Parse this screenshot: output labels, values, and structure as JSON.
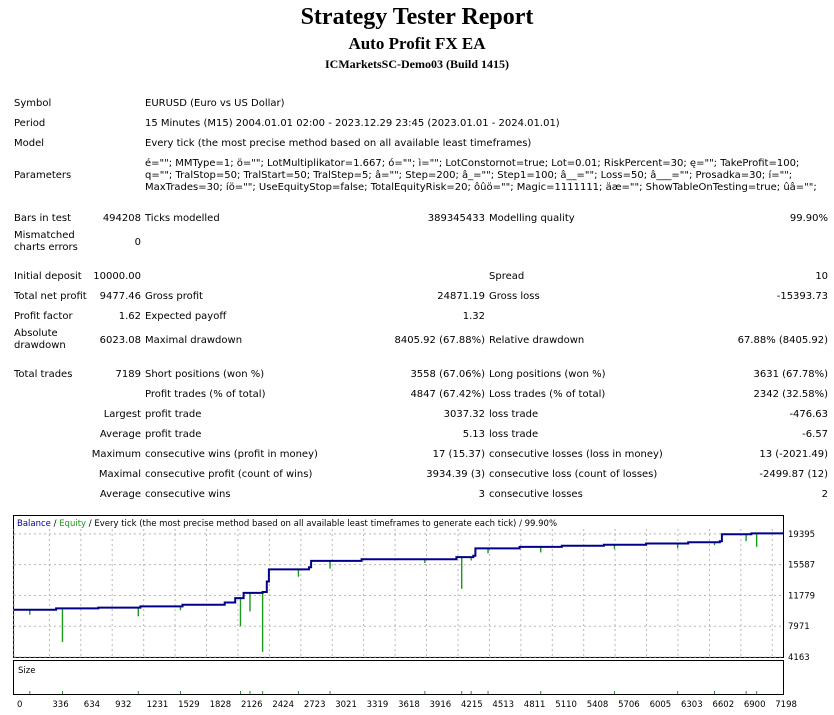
{
  "header": {
    "title": "Strategy Tester Report",
    "ea_name": "Auto Profit FX EA",
    "server": "ICMarketsSC-Demo03 (Build 1415)"
  },
  "general": {
    "symbol_label": "Symbol",
    "symbol_value": "EURUSD (Euro vs US Dollar)",
    "period_label": "Period",
    "period_value": "15 Minutes (M15) 2004.01.01 02:00 - 2023.12.29 23:45 (2023.01.01 - 2024.01.01)",
    "model_label": "Model",
    "model_value": "Every tick (the most precise method based on all available least timeframes)",
    "parameters_label": "Parameters",
    "parameters_value": "é=\"\"; MMType=1; ö=\"\"; LotMultiplikator=1.667; ó=\"\"; ì=\"\"; LotConstornot=true; Lot=0.01; RiskPercent=30; ę=\"\"; TakeProfit=100; q=\"\"; TralStop=50; TralStart=50; TralStep=5; â=\"\"; Step=200; â_=\"\"; Step1=100; â__=\"\"; Loss=50; â___=\"\"; Prosadka=30; í=\"\"; MaxTrades=30; íö=\"\"; UseEquityStop=false; TotalEquityRisk=20; ôûö=\"\"; Magic=1111111; äæ=\"\"; ShowTableOnTesting=true; ûâ=\"\";"
  },
  "stats": {
    "bars_label": "Bars in test",
    "bars_value": "494208",
    "ticks_label": "Ticks modelled",
    "ticks_value": "389345433",
    "mq_label": "Modelling quality",
    "mq_value": "99.90%",
    "mismatch_label": "Mismatched charts errors",
    "mismatch_value": "0",
    "deposit_label": "Initial deposit",
    "deposit_value": "10000.00",
    "spread_label": "Spread",
    "spread_value": "10",
    "netprofit_label": "Total net profit",
    "netprofit_value": "9477.46",
    "grossprofit_label": "Gross profit",
    "grossprofit_value": "24871.19",
    "grossloss_label": "Gross loss",
    "grossloss_value": "-15393.73",
    "pf_label": "Profit factor",
    "pf_value": "1.62",
    "ep_label": "Expected payoff",
    "ep_value": "1.32",
    "absdd_label": "Absolute drawdown",
    "absdd_value": "6023.08",
    "maxdd_label": "Maximal drawdown",
    "maxdd_value": "8405.92 (67.88%)",
    "reldd_label": "Relative drawdown",
    "reldd_value": "67.88% (8405.92)",
    "tt_label": "Total trades",
    "tt_value": "7189",
    "short_label": "Short positions (won %)",
    "short_value": "3558 (67.06%)",
    "long_label": "Long positions (won %)",
    "long_value": "3631 (67.78%)",
    "pt_label": "Profit trades (% of total)",
    "pt_value": "4847 (67.42%)",
    "lt_label": "Loss trades (% of total)",
    "lt_value": "2342 (32.58%)",
    "largest_label": "Largest",
    "largest_pt_label": "profit trade",
    "largest_pt_value": "3037.32",
    "largest_lt_label": "loss trade",
    "largest_lt_value": "-476.63",
    "average_label": "Average",
    "average_pt_label": "profit trade",
    "average_pt_value": "5.13",
    "average_lt_label": "loss trade",
    "average_lt_value": "-6.57",
    "maximum_label": "Maximum",
    "max_cw_label": "consecutive wins (profit in money)",
    "max_cw_value": "17 (15.37)",
    "max_cl_label": "consecutive losses (loss in money)",
    "max_cl_value": "13 (-2021.49)",
    "maximal_label": "Maximal",
    "mx_cp_label": "consecutive profit (count of wins)",
    "mx_cp_value": "3934.39 (3)",
    "mx_cl_label": "consecutive loss (count of losses)",
    "mx_cl_value": "-2499.87 (12)",
    "average2_label": "Average",
    "avg_cw_label": "consecutive wins",
    "avg_cw_value": "3",
    "avg_cl_label": "consecutive losses",
    "avg_cl_value": "2"
  },
  "chart_data": {
    "type": "line",
    "legend_balance": "Balance",
    "legend_sep": " / ",
    "legend_equity": "Equity",
    "legend_rest": " / Every tick (the most precise method based on all available least timeframes to generate each tick) / 99.90%",
    "size_label": "Size",
    "balance_color": "#00008b",
    "equity_color": "#1a9a1a",
    "grid": true,
    "ylim": [
      4163,
      20000
    ],
    "y_ticks": [
      "19395",
      "15587",
      "11779",
      "7971",
      "4163"
    ],
    "y_tick_values": [
      19395,
      15587,
      11779,
      7971,
      4163
    ],
    "xlim": [
      0,
      7300
    ],
    "x_ticks": [
      "0",
      "336",
      "634",
      "932",
      "1231",
      "1529",
      "1828",
      "2126",
      "2424",
      "2723",
      "3021",
      "3319",
      "3618",
      "3916",
      "4215",
      "4513",
      "4811",
      "5110",
      "5408",
      "5706",
      "6005",
      "6303",
      "6602",
      "6900",
      "7198"
    ],
    "x_tick_values": [
      0,
      336,
      634,
      932,
      1231,
      1529,
      1828,
      2126,
      2424,
      2723,
      3021,
      3319,
      3618,
      3916,
      4215,
      4513,
      4811,
      5110,
      5408,
      5706,
      6005,
      6303,
      6602,
      6900,
      7198
    ],
    "balance_x": [
      0,
      400,
      800,
      1200,
      1600,
      2000,
      2100,
      2180,
      2360,
      2400,
      2420,
      2800,
      2820,
      3300,
      4200,
      4360,
      4380,
      4800,
      5200,
      5600,
      6000,
      6400,
      6700,
      6720,
      7000,
      7300
    ],
    "balance_y": [
      10000,
      10180,
      10280,
      10420,
      10640,
      10900,
      11450,
      12100,
      12200,
      13500,
      15000,
      15260,
      16050,
      16250,
      16520,
      16700,
      17600,
      17780,
      17920,
      18050,
      18200,
      18350,
      18480,
      19350,
      19450,
      19600
    ],
    "equity_dips_x": [
      150,
      460,
      1180,
      1580,
      2150,
      2240,
      2360,
      2700,
      3000,
      3900,
      4250,
      4340,
      4500,
      5000,
      5700,
      6300,
      6650,
      6950,
      7050
    ],
    "equity_dips_y": [
      9400,
      6023,
      9200,
      9950,
      7980,
      9800,
      4800,
      14100,
      15100,
      15800,
      12600,
      16100,
      17000,
      17100,
      17500,
      17600,
      18000,
      18500,
      17800
    ]
  }
}
